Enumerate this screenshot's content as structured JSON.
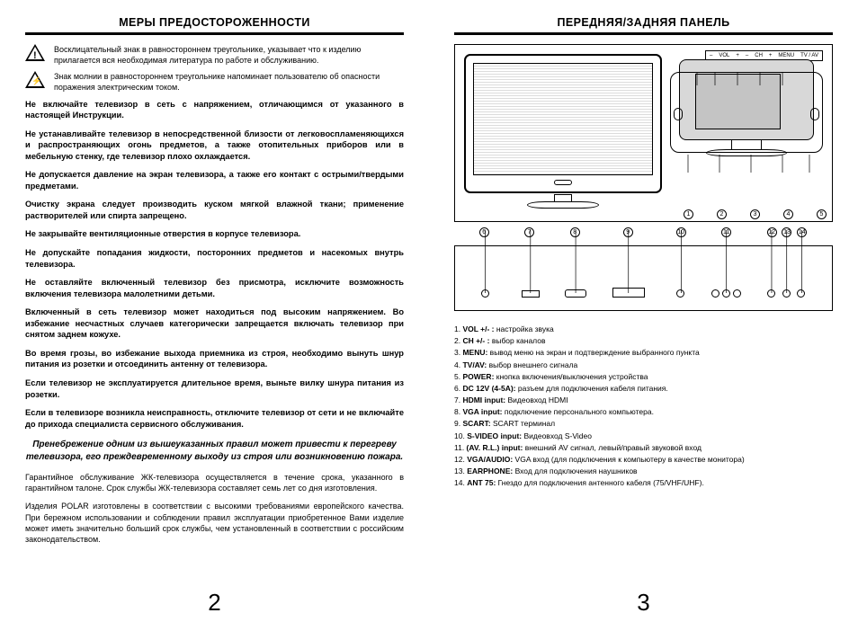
{
  "left": {
    "title": "МЕРЫ ПРЕДОСТОРОЖЕННОСТИ",
    "warn1": "Восклицательный знак в равностороннем треугольнике, указывает что к изделию прилагается вся необходимая литература по работе и обслуживанию.",
    "warn2": "Знак молнии в равностороннем треугольнике напоминает пользователю об опасности поражения электрическим током.",
    "p1": "Не включайте телевизор в сеть с напряжением, отличающимся от указанного в настоящей Инструкции.",
    "p2": "Не устанавливайте телевизор в непосредственной близости от легковоспламеняющихся и распространяющих огонь предметов, а также отопительных приборов или в мебельную стенку, где телевизор плохо охлаждается.",
    "p3": "Не допускается давление на экран телевизора, а также его контакт с острыми/твердыми предметами.",
    "p4": "Очистку экрана следует производить куском мягкой влажной ткани; применение растворителей или спирта запрещено.",
    "p5": "Не закрывайте вентиляционные отверстия в корпусе телевизора.",
    "p6": "Не допускайте попадания жидкости, посторонних предметов и насекомых внутрь телевизора.",
    "p7": "Не оставляйте включенный телевизор без присмотра, исключите возможность включения телевизора малолетними детьми.",
    "p8": "Включенный в сеть телевизор может находиться под высоким напряжением. Во избежание несчастных случаев категорически запрещается включать телевизор при снятом заднем кожухе.",
    "p9": "Во время грозы, во избежание выхода приемника из строя, необходимо вынуть шнур питания из розетки и отсоединить антенну от телевизора.",
    "p10": "Если телевизор не эксплуатируется длительное время, выньте вилку шнура питания из розетки.",
    "p11": "Если в телевизоре возникла неисправность, отключите телевизор от сети и не включайте до прихода специалиста сервисного обслуживания.",
    "italic": "Пренебрежение одним из вышеуказанных правил может привести к перегреву телевизора, его преждевременному выходу из строя или возникновению пожара.",
    "plain1": "Гарантийное обслуживание ЖК-телевизора осуществляется в течение срока, указанного в гарантийном талоне.  Срок службы ЖК-телевизора составляет семь лет со дня изготовления.",
    "plain2": "Изделия POLAR изготовлены в соответствии с высокими требованиями европейского качества. При бережном использовании и соблюдении правил эксплуатации приобретенное Вами изделие может иметь значительно больший срок службы, чем установленный в соответствии с российским законодательством.",
    "pagenum": "2"
  },
  "right": {
    "title": "ПЕРЕДНЯЯ/ЗАДНЯЯ ПАНЕЛЬ",
    "btns": [
      "–",
      "VOL",
      "+",
      "–",
      "CH",
      "+",
      "MENU",
      "TV / AV"
    ],
    "front_callouts": [
      "1",
      "2",
      "3",
      "4",
      "5"
    ],
    "port_callouts": [
      "6",
      "7",
      "8",
      "9",
      "10",
      "11",
      "12",
      "13",
      "14"
    ],
    "legend": [
      {
        "n": "1.",
        "k": "VOL +/- :",
        "d": "настройка звука"
      },
      {
        "n": "2.",
        "k": "CH +/- :",
        "d": "выбор каналов"
      },
      {
        "n": "3.",
        "k": "MENU:",
        "d": "вывод меню на экран и подтверждение выбранного пункта"
      },
      {
        "n": "4.",
        "k": "TV/AV:",
        "d": "выбор внешнего сигнала"
      },
      {
        "n": "5.",
        "k": "POWER:",
        "d": "кнопка включения/выключения устройства"
      },
      {
        "n": "6.",
        "k": "DC 12V (4-5A):",
        "d": "разъем для подключения кабеля питания."
      },
      {
        "n": "7.",
        "k": "HDMI input:",
        "d": "Видеовход HDMI"
      },
      {
        "n": "8.",
        "k": "VGA input:",
        "d": "подключение персонального компьютера."
      },
      {
        "n": "9.",
        "k": "SCART:",
        "d": "SCART терминал"
      },
      {
        "n": "10.",
        "k": "S-VIDEO input:",
        "d": "Видеовход S-Video"
      },
      {
        "n": "11.",
        "k": "(AV. R.L.) input:",
        "d": "внешний AV сигнал, левый/правый звуковой вход"
      },
      {
        "n": "12.",
        "k": "VGA/AUDIO:",
        "d": "VGA вход (для подключения к компьютеру в качестве монитора)"
      },
      {
        "n": "13.",
        "k": "EARPHONE:",
        "d": "Вход для подключения наушников"
      },
      {
        "n": "14.",
        "k": "ANT 75:",
        "d": "Гнездо для подключения антенного кабеля (75/VHF/UHF)."
      }
    ],
    "pagenum": "3"
  }
}
